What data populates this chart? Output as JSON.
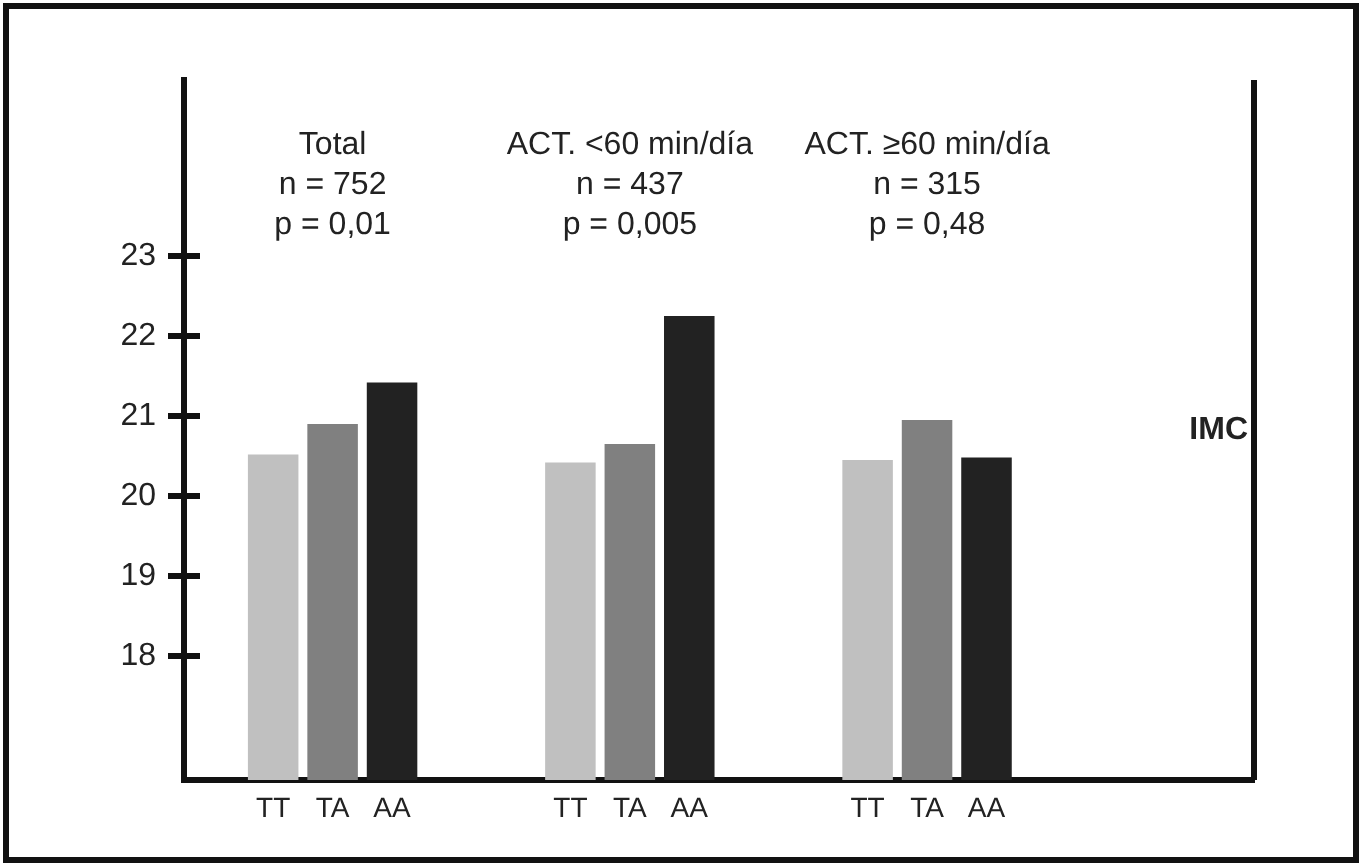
{
  "chart_data": {
    "type": "bar",
    "ylabel": "IMC",
    "categories": [
      null,
      "TT",
      "TA",
      "AA",
      null,
      null,
      "TT",
      "TA",
      "AA",
      null,
      null,
      "TT",
      "TA",
      "AA",
      null,
      null,
      null,
      null
    ],
    "values": [
      null,
      20.52,
      20.9,
      21.42,
      null,
      null,
      20.42,
      20.65,
      22.25,
      null,
      null,
      20.45,
      20.95,
      20.48,
      null,
      null,
      null,
      null
    ],
    "colors": [
      "#c0c0c0",
      "#c0c0c0",
      "#808080",
      "#222222",
      "#c0c0c0",
      "#c0c0c0",
      "#c0c0c0",
      "#808080",
      "#222222",
      "#c0c0c0",
      "#c0c0c0",
      "#c0c0c0",
      "#808080",
      "#222222",
      "#c0c0c0",
      "#c0c0c0",
      "#c0c0c0",
      "#c0c0c0"
    ],
    "ylim": [
      16.45,
      25.2
    ],
    "yticks": [
      18,
      19,
      20,
      21,
      22,
      23
    ],
    "grid": false,
    "legend": false,
    "annotations": [
      "Total\nn = 752\np = 0,01",
      "ACT. <60 min/día\nn = 437\np = 0,005",
      "ACT. ≥60 min/día\nn = 315\np = 0,48"
    ]
  }
}
